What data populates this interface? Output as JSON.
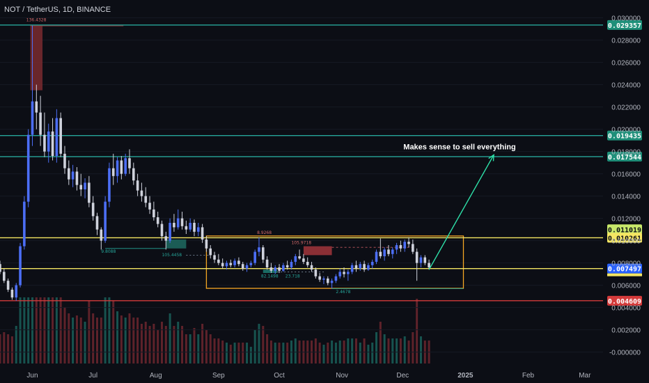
{
  "header": {
    "symbol_line": "NOT / TetherUS, 1D, BINANCE"
  },
  "colors": {
    "background": "#0c0e15",
    "candle_up": "#4c6ef5",
    "candle_down": "#cfd2dc",
    "teal_line": "#26a69a",
    "yellow_line": "#f5e663",
    "red_line": "#d43b3b",
    "orange_box": "#f5a623",
    "axis_text": "#b2b5be"
  },
  "annotation": {
    "text": "Makes sense to sell everything"
  },
  "chart_data": {
    "type": "candlestick",
    "title": "NOT / TetherUS, 1D, BINANCE",
    "y_axis": {
      "ticks": [
        "0.030000",
        "0.028000",
        "0.026000",
        "0.024000",
        "0.022000",
        "0.020000",
        "0.018000",
        "0.016000",
        "0.014000",
        "0.012000",
        "0.010000",
        "0.008000",
        "0.006000",
        "0.004000",
        "0.002000",
        "-0.000000"
      ],
      "range": [
        -0.0009,
        0.0306
      ]
    },
    "x_axis": {
      "ticks": [
        "Jun",
        "Jul",
        "Aug",
        "Sep",
        "Oct",
        "Nov",
        "Dec",
        "2025",
        "Feb",
        "Mar"
      ],
      "range": [
        "2024-05-16",
        "2025-03-10"
      ]
    },
    "price_levels": [
      {
        "label": "0.029357",
        "value": 0.029357,
        "color": "teal"
      },
      {
        "label": "0.019435",
        "value": 0.019435,
        "color": "teal"
      },
      {
        "label": "0.017544",
        "value": 0.017544,
        "color": "teal"
      },
      {
        "label": "0.011019",
        "value": 0.011019,
        "color": "green_label"
      },
      {
        "label": "0.010261",
        "value": 0.010261,
        "color": "yellow"
      },
      {
        "label": "0.007497",
        "value": 0.007497,
        "color": "blue_label"
      },
      {
        "label": "0.004609",
        "value": 0.004609,
        "color": "red"
      }
    ],
    "small_labels": [
      "136.4328",
      "9.8088",
      "105.4458",
      "8.9268",
      "105.9718",
      "82.1498",
      "23.718",
      "2.4678"
    ],
    "range_box": {
      "from": "2024-08-26",
      "to": "2024-12-31",
      "top": 0.01042,
      "bottom": 0.00572
    },
    "arrow": {
      "from_date": "2024-12-14",
      "from_value": 0.0074,
      "to_date": "2025-01-15",
      "to_value": 0.0177
    },
    "candles": [
      {
        "d": "2024-05-16",
        "o": 0.0079,
        "h": 0.0082,
        "l": 0.007,
        "c": 0.0072
      },
      {
        "d": "2024-05-18",
        "o": 0.0072,
        "h": 0.0075,
        "l": 0.0062,
        "c": 0.0064
      },
      {
        "d": "2024-05-20",
        "o": 0.0064,
        "h": 0.0066,
        "l": 0.0054,
        "c": 0.0056
      },
      {
        "d": "2024-05-22",
        "o": 0.0056,
        "h": 0.0058,
        "l": 0.0047,
        "c": 0.0049
      },
      {
        "d": "2024-05-24",
        "o": 0.0049,
        "h": 0.0062,
        "l": 0.0046,
        "c": 0.006
      },
      {
        "d": "2024-05-26",
        "o": 0.006,
        "h": 0.0098,
        "l": 0.0058,
        "c": 0.0095
      },
      {
        "d": "2024-05-28",
        "o": 0.0095,
        "h": 0.014,
        "l": 0.0092,
        "c": 0.0135
      },
      {
        "d": "2024-05-30",
        "o": 0.0135,
        "h": 0.02,
        "l": 0.013,
        "c": 0.0195
      },
      {
        "d": "2024-06-01",
        "o": 0.0195,
        "h": 0.0293,
        "l": 0.0185,
        "c": 0.0225
      },
      {
        "d": "2024-06-03",
        "o": 0.0225,
        "h": 0.024,
        "l": 0.02,
        "c": 0.0215
      },
      {
        "d": "2024-06-05",
        "o": 0.0215,
        "h": 0.023,
        "l": 0.0185,
        "c": 0.0195
      },
      {
        "d": "2024-06-07",
        "o": 0.0195,
        "h": 0.0215,
        "l": 0.0175,
        "c": 0.018
      },
      {
        "d": "2024-06-09",
        "o": 0.018,
        "h": 0.0205,
        "l": 0.017,
        "c": 0.0198
      },
      {
        "d": "2024-06-11",
        "o": 0.0198,
        "h": 0.021,
        "l": 0.0172,
        "c": 0.0176
      },
      {
        "d": "2024-06-13",
        "o": 0.0176,
        "h": 0.0218,
        "l": 0.017,
        "c": 0.021
      },
      {
        "d": "2024-06-15",
        "o": 0.021,
        "h": 0.0215,
        "l": 0.0175,
        "c": 0.0178
      },
      {
        "d": "2024-06-17",
        "o": 0.0178,
        "h": 0.0185,
        "l": 0.016,
        "c": 0.0165
      },
      {
        "d": "2024-06-19",
        "o": 0.0165,
        "h": 0.0172,
        "l": 0.015,
        "c": 0.0155
      },
      {
        "d": "2024-06-21",
        "o": 0.0155,
        "h": 0.0168,
        "l": 0.0148,
        "c": 0.0162
      },
      {
        "d": "2024-06-23",
        "o": 0.0162,
        "h": 0.0166,
        "l": 0.0145,
        "c": 0.015
      },
      {
        "d": "2024-06-25",
        "o": 0.015,
        "h": 0.016,
        "l": 0.014,
        "c": 0.0146
      },
      {
        "d": "2024-06-27",
        "o": 0.0146,
        "h": 0.0156,
        "l": 0.0138,
        "c": 0.0152
      },
      {
        "d": "2024-06-29",
        "o": 0.0152,
        "h": 0.0158,
        "l": 0.013,
        "c": 0.0134
      },
      {
        "d": "2024-07-01",
        "o": 0.0134,
        "h": 0.014,
        "l": 0.0118,
        "c": 0.0122
      },
      {
        "d": "2024-07-03",
        "o": 0.0122,
        "h": 0.0125,
        "l": 0.0105,
        "c": 0.011
      },
      {
        "d": "2024-07-05",
        "o": 0.011,
        "h": 0.0112,
        "l": 0.0092,
        "c": 0.01
      },
      {
        "d": "2024-07-07",
        "o": 0.01,
        "h": 0.014,
        "l": 0.0098,
        "c": 0.0135
      },
      {
        "d": "2024-07-09",
        "o": 0.0135,
        "h": 0.017,
        "l": 0.013,
        "c": 0.0165
      },
      {
        "d": "2024-07-11",
        "o": 0.0165,
        "h": 0.0178,
        "l": 0.015,
        "c": 0.0158
      },
      {
        "d": "2024-07-13",
        "o": 0.0158,
        "h": 0.0175,
        "l": 0.0152,
        "c": 0.0172
      },
      {
        "d": "2024-07-15",
        "o": 0.0172,
        "h": 0.0176,
        "l": 0.0155,
        "c": 0.016
      },
      {
        "d": "2024-07-17",
        "o": 0.016,
        "h": 0.0178,
        "l": 0.0158,
        "c": 0.0174
      },
      {
        "d": "2024-07-19",
        "o": 0.0174,
        "h": 0.0182,
        "l": 0.016,
        "c": 0.0165
      },
      {
        "d": "2024-07-21",
        "o": 0.0165,
        "h": 0.017,
        "l": 0.015,
        "c": 0.0154
      },
      {
        "d": "2024-07-23",
        "o": 0.0154,
        "h": 0.016,
        "l": 0.014,
        "c": 0.0145
      },
      {
        "d": "2024-07-25",
        "o": 0.0145,
        "h": 0.0152,
        "l": 0.0135,
        "c": 0.014
      },
      {
        "d": "2024-07-27",
        "o": 0.014,
        "h": 0.0148,
        "l": 0.013,
        "c": 0.0134
      },
      {
        "d": "2024-07-29",
        "o": 0.0134,
        "h": 0.014,
        "l": 0.0124,
        "c": 0.0128
      },
      {
        "d": "2024-07-31",
        "o": 0.0128,
        "h": 0.0135,
        "l": 0.0118,
        "c": 0.0121
      },
      {
        "d": "2024-08-02",
        "o": 0.0121,
        "h": 0.0126,
        "l": 0.0112,
        "c": 0.0115
      },
      {
        "d": "2024-08-04",
        "o": 0.0115,
        "h": 0.0118,
        "l": 0.01,
        "c": 0.0104
      },
      {
        "d": "2024-08-06",
        "o": 0.0104,
        "h": 0.0108,
        "l": 0.0092,
        "c": 0.01
      },
      {
        "d": "2024-08-08",
        "o": 0.01,
        "h": 0.012,
        "l": 0.0098,
        "c": 0.0116
      },
      {
        "d": "2024-08-10",
        "o": 0.0116,
        "h": 0.0124,
        "l": 0.0108,
        "c": 0.0112
      },
      {
        "d": "2024-08-12",
        "o": 0.0112,
        "h": 0.0128,
        "l": 0.011,
        "c": 0.012
      },
      {
        "d": "2024-08-14",
        "o": 0.012,
        "h": 0.0126,
        "l": 0.011,
        "c": 0.0113
      },
      {
        "d": "2024-08-16",
        "o": 0.0113,
        "h": 0.0118,
        "l": 0.0106,
        "c": 0.011
      },
      {
        "d": "2024-08-18",
        "o": 0.011,
        "h": 0.012,
        "l": 0.0108,
        "c": 0.0116
      },
      {
        "d": "2024-08-20",
        "o": 0.0116,
        "h": 0.0119,
        "l": 0.0104,
        "c": 0.0108
      },
      {
        "d": "2024-08-22",
        "o": 0.0108,
        "h": 0.0116,
        "l": 0.0104,
        "c": 0.0112
      },
      {
        "d": "2024-08-24",
        "o": 0.0112,
        "h": 0.0115,
        "l": 0.0098,
        "c": 0.0101
      },
      {
        "d": "2024-08-26",
        "o": 0.0101,
        "h": 0.0104,
        "l": 0.009,
        "c": 0.0093
      },
      {
        "d": "2024-08-28",
        "o": 0.0093,
        "h": 0.0096,
        "l": 0.0084,
        "c": 0.0087
      },
      {
        "d": "2024-08-30",
        "o": 0.0087,
        "h": 0.009,
        "l": 0.008,
        "c": 0.0083
      },
      {
        "d": "2024-09-01",
        "o": 0.0083,
        "h": 0.0088,
        "l": 0.0078,
        "c": 0.008
      },
      {
        "d": "2024-09-03",
        "o": 0.008,
        "h": 0.0084,
        "l": 0.0075,
        "c": 0.0077
      },
      {
        "d": "2024-09-05",
        "o": 0.0077,
        "h": 0.0082,
        "l": 0.0074,
        "c": 0.008
      },
      {
        "d": "2024-09-07",
        "o": 0.008,
        "h": 0.0083,
        "l": 0.0076,
        "c": 0.0078
      },
      {
        "d": "2024-09-09",
        "o": 0.0078,
        "h": 0.0084,
        "l": 0.0076,
        "c": 0.0082
      },
      {
        "d": "2024-09-11",
        "o": 0.0082,
        "h": 0.0085,
        "l": 0.0077,
        "c": 0.0079
      },
      {
        "d": "2024-09-13",
        "o": 0.0079,
        "h": 0.0081,
        "l": 0.0073,
        "c": 0.0075
      },
      {
        "d": "2024-09-15",
        "o": 0.0075,
        "h": 0.008,
        "l": 0.0072,
        "c": 0.0078
      },
      {
        "d": "2024-09-17",
        "o": 0.0078,
        "h": 0.0082,
        "l": 0.0076,
        "c": 0.008
      },
      {
        "d": "2024-09-19",
        "o": 0.008,
        "h": 0.0092,
        "l": 0.0078,
        "c": 0.009
      },
      {
        "d": "2024-09-21",
        "o": 0.009,
        "h": 0.0103,
        "l": 0.0086,
        "c": 0.0094
      },
      {
        "d": "2024-09-23",
        "o": 0.0094,
        "h": 0.0096,
        "l": 0.008,
        "c": 0.0083
      },
      {
        "d": "2024-09-25",
        "o": 0.0083,
        "h": 0.0086,
        "l": 0.0074,
        "c": 0.0076
      },
      {
        "d": "2024-09-27",
        "o": 0.0076,
        "h": 0.008,
        "l": 0.0071,
        "c": 0.0073
      },
      {
        "d": "2024-09-29",
        "o": 0.0073,
        "h": 0.0078,
        "l": 0.007,
        "c": 0.0076
      },
      {
        "d": "2024-10-01",
        "o": 0.0076,
        "h": 0.0079,
        "l": 0.0071,
        "c": 0.0073
      },
      {
        "d": "2024-10-03",
        "o": 0.0073,
        "h": 0.008,
        "l": 0.0072,
        "c": 0.0078
      },
      {
        "d": "2024-10-05",
        "o": 0.0078,
        "h": 0.0082,
        "l": 0.0074,
        "c": 0.0076
      },
      {
        "d": "2024-10-07",
        "o": 0.0076,
        "h": 0.0083,
        "l": 0.0074,
        "c": 0.0081
      },
      {
        "d": "2024-10-09",
        "o": 0.0081,
        "h": 0.0088,
        "l": 0.0078,
        "c": 0.0086
      },
      {
        "d": "2024-10-11",
        "o": 0.0086,
        "h": 0.0092,
        "l": 0.0083,
        "c": 0.0084
      },
      {
        "d": "2024-10-13",
        "o": 0.0084,
        "h": 0.0088,
        "l": 0.0079,
        "c": 0.0081
      },
      {
        "d": "2024-10-15",
        "o": 0.0081,
        "h": 0.0085,
        "l": 0.0076,
        "c": 0.0078
      },
      {
        "d": "2024-10-17",
        "o": 0.0078,
        "h": 0.0081,
        "l": 0.0072,
        "c": 0.0074
      },
      {
        "d": "2024-10-19",
        "o": 0.0074,
        "h": 0.0076,
        "l": 0.0066,
        "c": 0.0068
      },
      {
        "d": "2024-10-21",
        "o": 0.0068,
        "h": 0.0071,
        "l": 0.0063,
        "c": 0.0065
      },
      {
        "d": "2024-10-23",
        "o": 0.0065,
        "h": 0.0068,
        "l": 0.0061,
        "c": 0.0066
      },
      {
        "d": "2024-10-25",
        "o": 0.0066,
        "h": 0.0068,
        "l": 0.006,
        "c": 0.0062
      },
      {
        "d": "2024-10-27",
        "o": 0.0062,
        "h": 0.0066,
        "l": 0.0057,
        "c": 0.0064
      },
      {
        "d": "2024-10-29",
        "o": 0.0064,
        "h": 0.007,
        "l": 0.0062,
        "c": 0.0068
      },
      {
        "d": "2024-10-31",
        "o": 0.0068,
        "h": 0.0075,
        "l": 0.0066,
        "c": 0.0072
      },
      {
        "d": "2024-11-02",
        "o": 0.0072,
        "h": 0.0076,
        "l": 0.0067,
        "c": 0.007
      },
      {
        "d": "2024-11-04",
        "o": 0.007,
        "h": 0.0074,
        "l": 0.0064,
        "c": 0.0072
      },
      {
        "d": "2024-11-06",
        "o": 0.0072,
        "h": 0.008,
        "l": 0.007,
        "c": 0.0078
      },
      {
        "d": "2024-11-08",
        "o": 0.0078,
        "h": 0.0082,
        "l": 0.0072,
        "c": 0.0075
      },
      {
        "d": "2024-11-10",
        "o": 0.0075,
        "h": 0.0081,
        "l": 0.0073,
        "c": 0.0079
      },
      {
        "d": "2024-11-12",
        "o": 0.0079,
        "h": 0.0082,
        "l": 0.0072,
        "c": 0.0074
      },
      {
        "d": "2024-11-14",
        "o": 0.0074,
        "h": 0.008,
        "l": 0.0073,
        "c": 0.0078
      },
      {
        "d": "2024-11-16",
        "o": 0.0078,
        "h": 0.0083,
        "l": 0.0075,
        "c": 0.0081
      },
      {
        "d": "2024-11-18",
        "o": 0.0081,
        "h": 0.0092,
        "l": 0.0079,
        "c": 0.009
      },
      {
        "d": "2024-11-20",
        "o": 0.009,
        "h": 0.0102,
        "l": 0.0084,
        "c": 0.0086
      },
      {
        "d": "2024-11-22",
        "o": 0.0086,
        "h": 0.0094,
        "l": 0.0082,
        "c": 0.0092
      },
      {
        "d": "2024-11-24",
        "o": 0.0092,
        "h": 0.0096,
        "l": 0.0086,
        "c": 0.0088
      },
      {
        "d": "2024-11-26",
        "o": 0.0088,
        "h": 0.0094,
        "l": 0.0084,
        "c": 0.0092
      },
      {
        "d": "2024-11-28",
        "o": 0.0092,
        "h": 0.0098,
        "l": 0.0088,
        "c": 0.0096
      },
      {
        "d": "2024-11-30",
        "o": 0.0096,
        "h": 0.01,
        "l": 0.009,
        "c": 0.0093
      },
      {
        "d": "2024-12-02",
        "o": 0.0093,
        "h": 0.0101,
        "l": 0.009,
        "c": 0.0099
      },
      {
        "d": "2024-12-04",
        "o": 0.0099,
        "h": 0.0103,
        "l": 0.0094,
        "c": 0.0097
      },
      {
        "d": "2024-12-06",
        "o": 0.0097,
        "h": 0.0101,
        "l": 0.0088,
        "c": 0.009
      },
      {
        "d": "2024-12-08",
        "o": 0.009,
        "h": 0.0093,
        "l": 0.0064,
        "c": 0.008
      },
      {
        "d": "2024-12-10",
        "o": 0.008,
        "h": 0.0087,
        "l": 0.0076,
        "c": 0.0085
      },
      {
        "d": "2024-12-12",
        "o": 0.0085,
        "h": 0.0087,
        "l": 0.0078,
        "c": 0.008
      },
      {
        "d": "2024-12-14",
        "o": 0.008,
        "h": 0.0083,
        "l": 0.0074,
        "c": 0.0076
      }
    ]
  }
}
